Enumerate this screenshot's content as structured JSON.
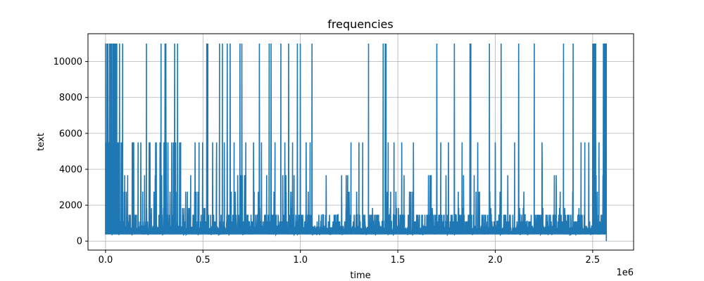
{
  "chart_data": {
    "type": "line",
    "title": "frequencies",
    "xlabel": "time",
    "ylabel": "text",
    "x_offset_label": "1e6",
    "xlim": [
      -0.09,
      2.71
    ],
    "ylim": [
      -500,
      11550
    ],
    "xticks": [
      0.0,
      0.5,
      1.0,
      1.5,
      2.0,
      2.5
    ],
    "xtick_labels": [
      "0.0",
      "0.5",
      "1.0",
      "1.5",
      "2.0",
      "2.5"
    ],
    "yticks": [
      0,
      2000,
      4000,
      6000,
      8000,
      10000
    ],
    "ytick_labels": [
      "0",
      "2000",
      "4000",
      "6000",
      "8000",
      "10000"
    ],
    "grid": true,
    "color": "#1f77b4",
    "x_range": [
      0.0,
      2.57
    ],
    "baseline": 370,
    "spike_levels": [
      730,
      1100,
      1470,
      1840,
      2750,
      3670,
      5500,
      11000
    ],
    "spikes_11000": [
      0.0,
      0.008,
      0.012,
      0.02,
      0.025,
      0.03,
      0.036,
      0.04,
      0.044,
      0.048,
      0.052,
      0.058,
      0.072,
      0.088,
      0.21,
      0.285,
      0.305,
      0.31,
      0.355,
      0.37,
      0.52,
      0.525,
      0.585,
      0.6,
      0.625,
      0.64,
      0.69,
      0.7,
      0.79,
      0.84,
      0.85,
      0.9,
      0.94,
      0.985,
      1.0,
      1.06,
      1.35,
      1.425,
      1.435,
      1.44,
      1.7,
      1.79,
      1.87,
      1.875,
      1.97,
      2.03,
      2.12,
      2.2,
      2.35,
      2.4,
      2.5,
      2.505,
      2.51,
      2.515,
      2.555,
      2.56,
      2.565,
      2.57
    ],
    "spikes_5500": [
      0.005,
      0.015,
      0.05,
      0.06,
      0.065,
      0.08,
      0.085,
      0.14,
      0.26,
      0.28,
      0.3,
      0.32,
      0.34,
      0.36,
      0.38,
      0.46,
      0.48,
      0.55,
      0.57,
      0.61,
      0.66,
      0.72,
      0.76,
      0.8,
      0.87,
      0.92,
      0.96,
      1.03,
      1.05,
      1.26,
      1.3,
      1.32,
      1.44,
      1.45,
      1.48,
      1.52,
      1.58,
      1.72,
      1.76,
      1.83,
      1.91,
      2.0,
      2.1,
      2.24,
      2.44,
      2.46,
      2.48
    ]
  }
}
